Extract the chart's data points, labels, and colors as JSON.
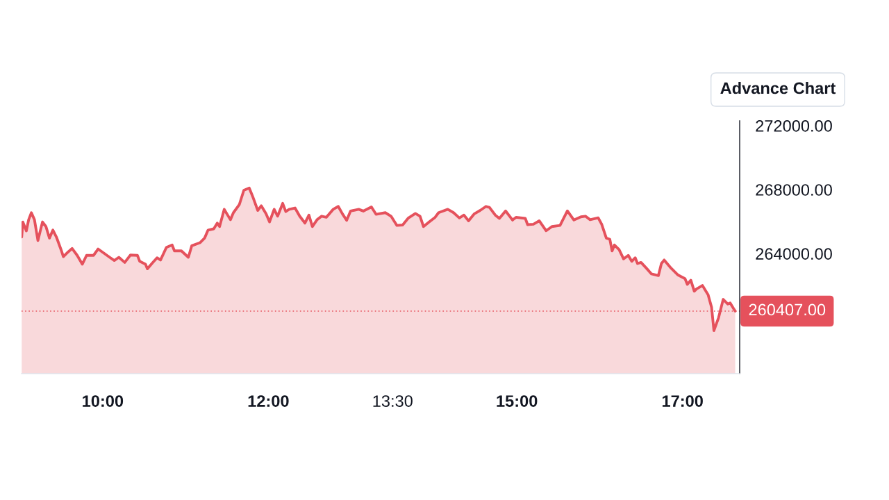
{
  "chart_data": {
    "type": "area",
    "x": [
      9.022,
      9.036,
      9.078,
      9.106,
      9.139,
      9.176,
      9.218,
      9.273,
      9.315,
      9.357,
      9.399,
      9.441,
      9.497,
      9.525,
      9.581,
      9.631,
      9.692,
      9.754,
      9.805,
      9.889,
      9.944,
      10.014,
      10.084,
      10.14,
      10.195,
      10.266,
      10.335,
      10.419,
      10.447,
      10.517,
      10.539,
      10.601,
      10.656,
      10.698,
      10.769,
      10.838,
      10.866,
      10.95,
      11.034,
      11.075,
      11.174,
      11.23,
      11.272,
      11.341,
      11.383,
      11.411,
      11.467,
      11.542,
      11.578,
      11.649,
      11.704,
      11.769,
      11.816,
      11.872,
      11.914,
      11.972,
      12.014,
      12.07,
      12.112,
      12.173,
      12.21,
      12.252,
      12.322,
      12.378,
      12.442,
      12.49,
      12.531,
      12.588,
      12.643,
      12.699,
      12.783,
      12.844,
      12.894,
      12.945,
      12.992,
      13.091,
      13.146,
      13.244,
      13.3,
      13.412,
      13.481,
      13.552,
      13.621,
      13.691,
      13.775,
      13.831,
      13.873,
      13.942,
      14.013,
      14.055,
      14.166,
      14.236,
      14.306,
      14.361,
      14.417,
      14.487,
      14.557,
      14.627,
      14.669,
      14.739,
      14.789,
      14.864,
      14.948,
      14.99,
      15.102,
      15.13,
      15.2,
      15.27,
      15.354,
      15.423,
      15.521,
      15.61,
      15.689,
      15.773,
      15.828,
      15.884,
      15.982,
      16.024,
      16.08,
      16.122,
      16.15,
      16.178,
      16.234,
      16.289,
      16.345,
      16.387,
      16.429,
      16.457,
      16.499,
      16.569,
      16.625,
      16.709,
      16.745,
      16.779,
      16.862,
      16.946,
      17.03,
      17.058,
      17.1,
      17.142,
      17.169,
      17.24,
      17.309,
      17.351,
      17.379,
      17.435,
      17.491,
      17.547,
      17.575,
      17.617,
      17.636
    ],
    "series": [
      {
        "color": "#e5515c",
        "values": [
          265040,
          265980,
          265420,
          266120,
          266560,
          266120,
          264820,
          265980,
          265690,
          264970,
          265470,
          265040,
          264250,
          263810,
          264100,
          264320,
          263890,
          263340,
          263890,
          263890,
          264290,
          264030,
          263770,
          263570,
          263770,
          263450,
          263910,
          263890,
          263520,
          263340,
          263050,
          263420,
          263740,
          263600,
          264390,
          264540,
          264170,
          264170,
          263770,
          264490,
          264680,
          264970,
          265470,
          265550,
          265910,
          265690,
          266770,
          266120,
          266560,
          267060,
          267960,
          268100,
          267500,
          266700,
          266990,
          266490,
          265980,
          266770,
          266340,
          267140,
          266630,
          266770,
          266850,
          266340,
          265910,
          266410,
          265690,
          266120,
          266340,
          266270,
          266770,
          266950,
          266490,
          266080,
          266660,
          266770,
          266660,
          266920,
          266460,
          266560,
          266340,
          265760,
          265790,
          266230,
          266510,
          266340,
          265690,
          265980,
          266270,
          266560,
          266770,
          266560,
          266230,
          266410,
          266050,
          266490,
          266700,
          266950,
          266890,
          266410,
          266200,
          266670,
          266100,
          266270,
          266200,
          265810,
          265840,
          266050,
          265430,
          265690,
          265760,
          266670,
          266100,
          266300,
          266340,
          266120,
          266240,
          265840,
          264970,
          264900,
          264170,
          264540,
          264250,
          263670,
          263890,
          263520,
          263740,
          263380,
          263450,
          263060,
          262730,
          262630,
          263380,
          263600,
          263090,
          262660,
          262440,
          262080,
          262340,
          261650,
          261790,
          262010,
          261430,
          260640,
          259190,
          259990,
          261140,
          260850,
          260920,
          260560,
          260407
        ]
      }
    ],
    "xlim": [
      9.02,
      17.69
    ],
    "ylim": [
      256500,
      272300
    ],
    "xticks": [
      {
        "value": 10,
        "label": "10:00"
      },
      {
        "value": 12,
        "label": "12:00"
      },
      {
        "value": 13.5,
        "label": "13:30"
      },
      {
        "value": 15,
        "label": "15:00"
      },
      {
        "value": 17,
        "label": "17:00"
      }
    ],
    "yticks": [
      {
        "value": 264000,
        "label": "264000.00"
      },
      {
        "value": 268000,
        "label": "268000.00"
      },
      {
        "value": 272000,
        "label": "272000.00"
      }
    ],
    "ref_lines": [
      {
        "axis": "y",
        "value": 260407,
        "label": "260407.00",
        "color": "#e5515c",
        "line_style": "dotted"
      }
    ],
    "annotations": [
      "Advance Chart"
    ],
    "grid": false,
    "legend": false
  }
}
